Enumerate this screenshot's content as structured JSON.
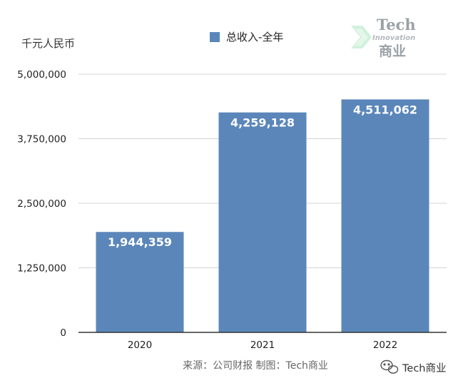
{
  "unit_label": "千元人民币",
  "source_note": "来源：公司财报 制图：Tech商业",
  "watermark": {
    "line1": "Tech",
    "line2": "Innovation",
    "line3": "商业"
  },
  "wechat_account": "Tech商业",
  "colors": {
    "bar": "#5b86ba",
    "grid": "#d4d4d4",
    "axis": "#333333",
    "watermark_accent": "#b8e8c8"
  },
  "chart_data": {
    "type": "bar",
    "categories": [
      "2020",
      "2021",
      "2022"
    ],
    "series": [
      {
        "name": "总收入-全年",
        "values": [
          1944359,
          4259128,
          4511062
        ],
        "labels": [
          "1,944,359",
          "4,259,128",
          "4,511,062"
        ]
      }
    ],
    "ylabel": "千元人民币",
    "ylim": [
      0,
      5000000
    ],
    "yticks": [
      0,
      1250000,
      2500000,
      3750000,
      5000000
    ],
    "ytick_labels": [
      "0",
      "1,250,000",
      "2,500,000",
      "3,750,000",
      "5,000,000"
    ],
    "grid": true,
    "legend_position": "top-center"
  }
}
